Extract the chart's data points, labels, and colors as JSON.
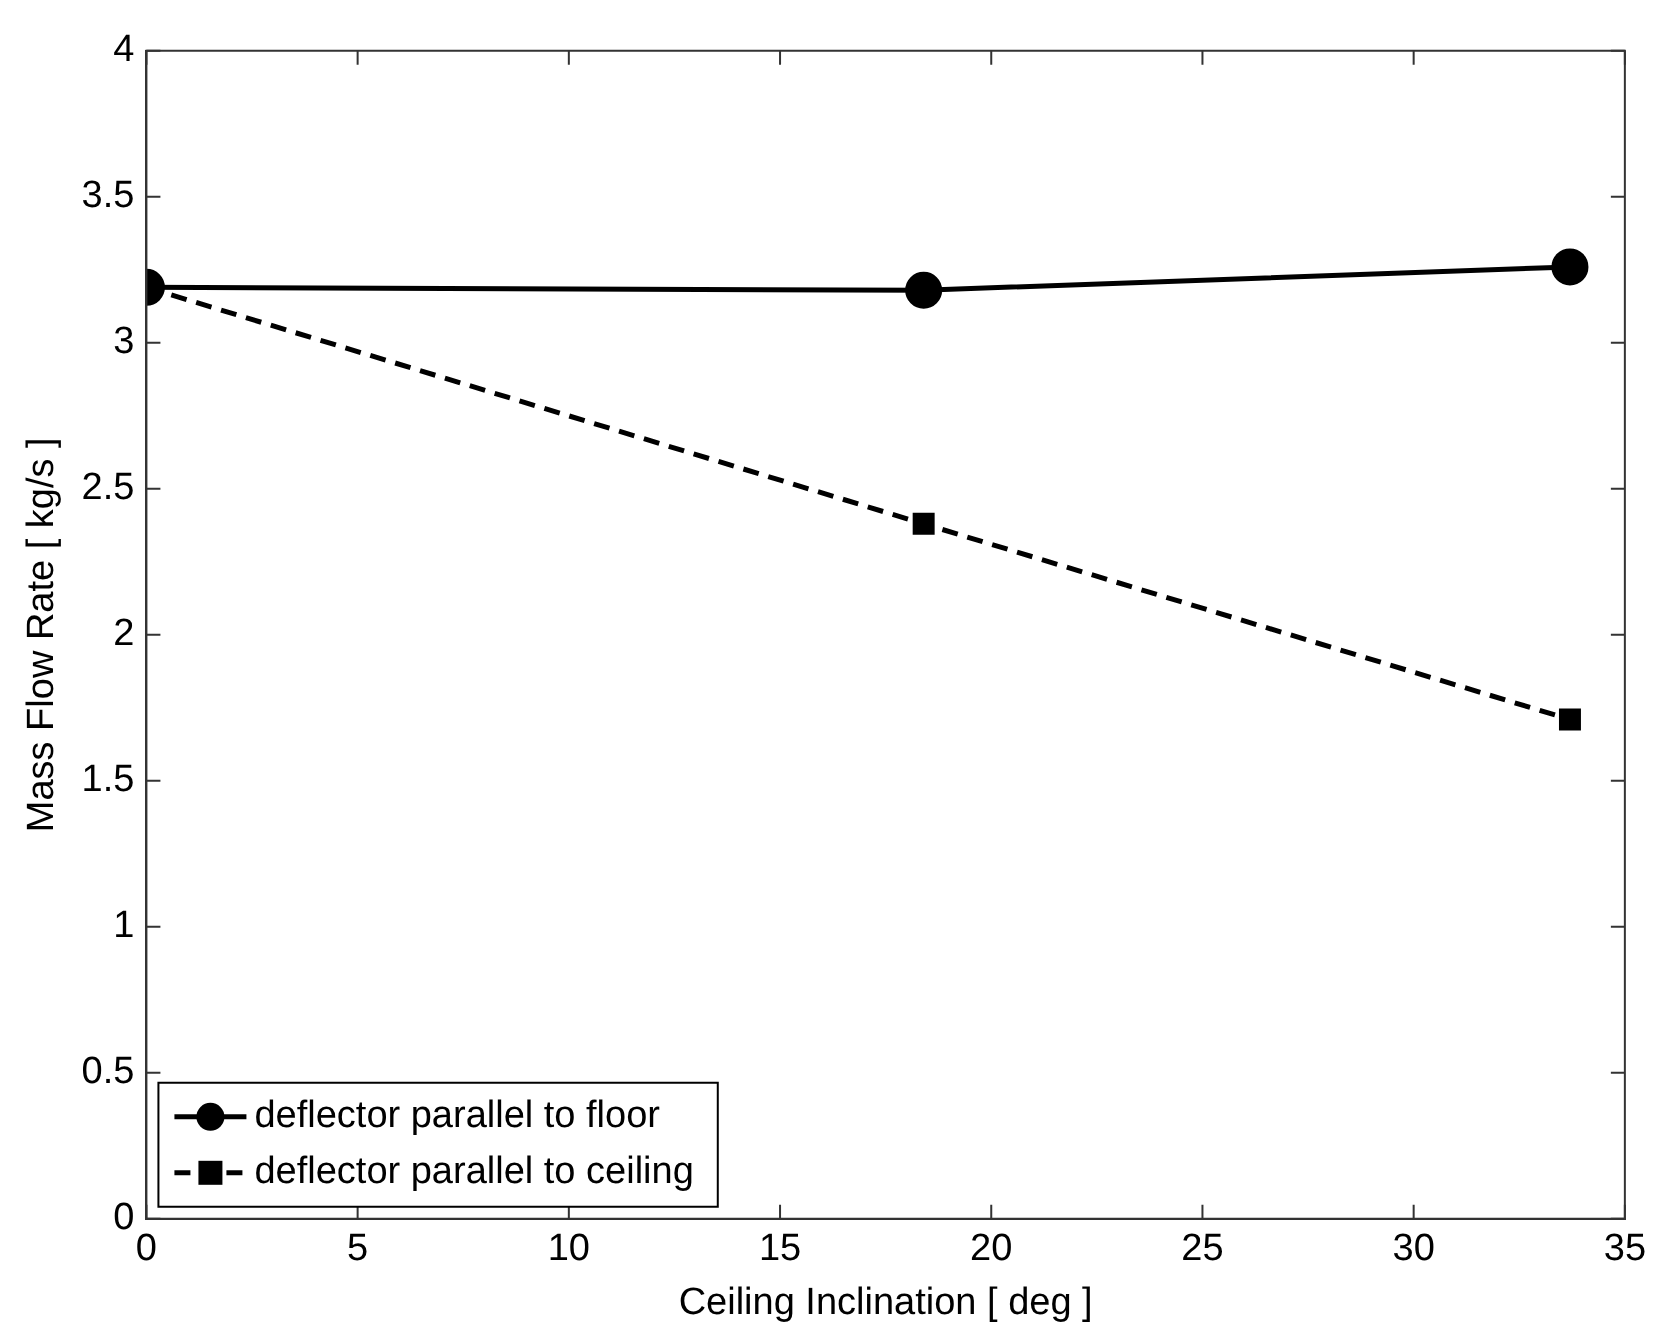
{
  "chart_data": {
    "type": "line",
    "xlabel": "Ceiling Inclination [ deg ]",
    "ylabel": "Mass Flow Rate [ kg/s ]",
    "x": [
      0,
      18.4,
      33.7
    ],
    "series": [
      {
        "name": "deflector parallel to floor",
        "color": "#000000",
        "values": [
          3.19,
          3.18,
          3.26
        ],
        "marker": "circle",
        "line_style": "solid"
      },
      {
        "name": "deflector parallel to ceiling",
        "color": "#000000",
        "values": [
          3.19,
          2.38,
          1.71
        ],
        "marker": "square",
        "line_style": "dashed"
      }
    ],
    "xlim": [
      0,
      35
    ],
    "xticks": [
      0,
      5,
      10,
      15,
      20,
      25,
      30,
      35
    ],
    "ylim": [
      0,
      4
    ],
    "yticks": [
      0,
      0.5,
      1,
      1.5,
      2,
      2.5,
      3,
      3.5,
      4
    ],
    "grid": false,
    "legend": "bottom left"
  }
}
